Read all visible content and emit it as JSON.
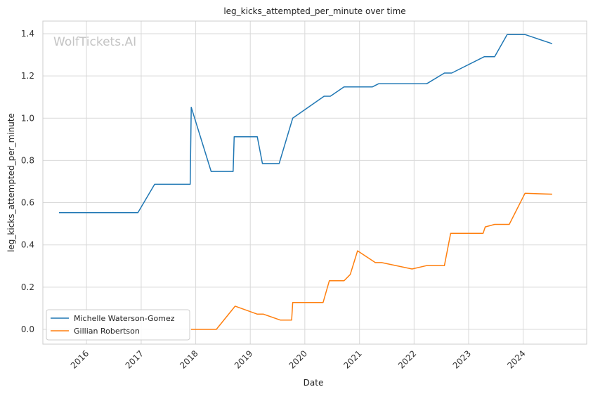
{
  "chart_data": {
    "type": "line",
    "title": "leg_kicks_attempted_per_minute over time",
    "xlabel": "Date",
    "ylabel": "leg_kicks_attempted_per_minute",
    "watermark": "WolfTickets.AI",
    "xlim": [
      "2015-03-15",
      "2025-03-01"
    ],
    "ylim": [
      -0.07,
      1.46
    ],
    "x_ticks": [
      {
        "date": "2016-01-01",
        "label": "2016"
      },
      {
        "date": "2017-01-01",
        "label": "2017"
      },
      {
        "date": "2018-01-01",
        "label": "2018"
      },
      {
        "date": "2019-01-01",
        "label": "2019"
      },
      {
        "date": "2020-01-01",
        "label": "2020"
      },
      {
        "date": "2021-01-01",
        "label": "2021"
      },
      {
        "date": "2022-01-01",
        "label": "2022"
      },
      {
        "date": "2023-01-01",
        "label": "2023"
      },
      {
        "date": "2024-01-01",
        "label": "2024"
      }
    ],
    "y_ticks": [
      {
        "value": 0.0,
        "label": "0.0"
      },
      {
        "value": 0.2,
        "label": "0.2"
      },
      {
        "value": 0.4,
        "label": "0.4"
      },
      {
        "value": 0.6,
        "label": "0.6"
      },
      {
        "value": 0.8,
        "label": "0.8"
      },
      {
        "value": 1.0,
        "label": "1.0"
      },
      {
        "value": 1.2,
        "label": "1.2"
      },
      {
        "value": 1.4,
        "label": "1.4"
      }
    ],
    "grid": true,
    "legend_position": "lower-left",
    "series": [
      {
        "name": "Michelle Waterson-Gomez",
        "color": "#1f77b4",
        "points": [
          [
            "2015-07-01",
            0.553
          ],
          [
            "2016-12-10",
            0.553
          ],
          [
            "2017-04-01",
            0.687
          ],
          [
            "2017-11-25",
            0.687
          ],
          [
            "2017-12-02",
            1.052
          ],
          [
            "2018-04-14",
            0.748
          ],
          [
            "2018-09-08",
            0.748
          ],
          [
            "2018-09-15",
            0.912
          ],
          [
            "2019-02-17",
            0.912
          ],
          [
            "2019-03-23",
            0.785
          ],
          [
            "2019-07-13",
            0.785
          ],
          [
            "2019-10-12",
            1.0
          ],
          [
            "2020-05-09",
            1.104
          ],
          [
            "2020-06-20",
            1.104
          ],
          [
            "2020-09-19",
            1.148
          ],
          [
            "2021-03-27",
            1.148
          ],
          [
            "2021-05-08",
            1.163
          ],
          [
            "2022-03-26",
            1.163
          ],
          [
            "2022-07-23",
            1.214
          ],
          [
            "2022-09-10",
            1.214
          ],
          [
            "2023-04-15",
            1.291
          ],
          [
            "2023-06-24",
            1.291
          ],
          [
            "2023-09-16",
            1.396
          ],
          [
            "2024-01-13",
            1.396
          ],
          [
            "2024-07-13",
            1.353
          ]
        ]
      },
      {
        "name": "Gillian Robertson",
        "color": "#ff7f0e",
        "points": [
          [
            "2017-12-01",
            0.0
          ],
          [
            "2018-05-19",
            0.0
          ],
          [
            "2018-09-22",
            0.11
          ],
          [
            "2019-02-17",
            0.072
          ],
          [
            "2019-03-30",
            0.072
          ],
          [
            "2019-07-20",
            0.044
          ],
          [
            "2019-10-05",
            0.044
          ],
          [
            "2019-10-12",
            0.127
          ],
          [
            "2020-05-02",
            0.127
          ],
          [
            "2020-06-13",
            0.23
          ],
          [
            "2020-09-19",
            0.23
          ],
          [
            "2020-10-31",
            0.26
          ],
          [
            "2020-12-19",
            0.372
          ],
          [
            "2021-04-17",
            0.316
          ],
          [
            "2021-05-29",
            0.316
          ],
          [
            "2021-12-18",
            0.286
          ],
          [
            "2022-03-26",
            0.302
          ],
          [
            "2022-07-23",
            0.302
          ],
          [
            "2022-09-03",
            0.455
          ],
          [
            "2023-04-08",
            0.455
          ],
          [
            "2023-04-22",
            0.485
          ],
          [
            "2023-06-24",
            0.497
          ],
          [
            "2023-09-30",
            0.497
          ],
          [
            "2024-01-13",
            0.644
          ],
          [
            "2024-07-13",
            0.64
          ]
        ]
      }
    ]
  }
}
